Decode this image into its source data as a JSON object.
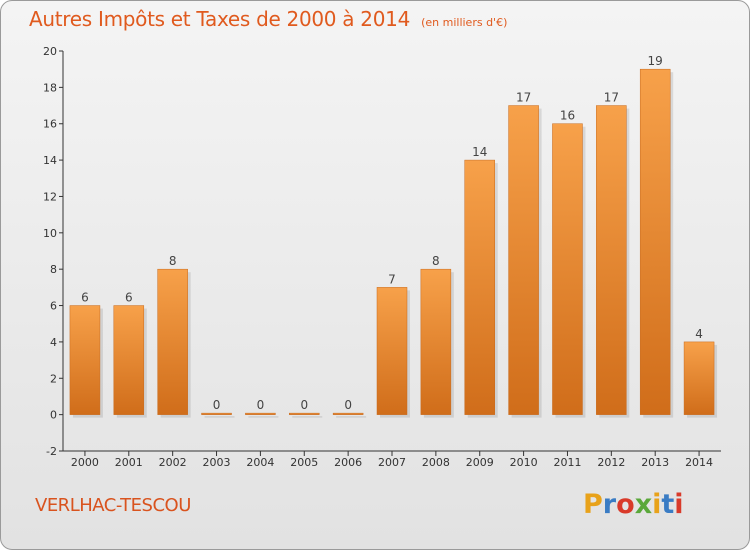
{
  "header": {
    "title": "Autres Impôts et Taxes de 2000 à 2014",
    "subtitle": "(en milliers d'€)"
  },
  "footer": {
    "commune": "VERLHAC-TESCOU",
    "brand": "Proxiti",
    "brand_colors": [
      "#e8a21a",
      "#3a7cc4",
      "#d93a2a",
      "#5aa83a",
      "#e8a21a",
      "#3a7cc4",
      "#d93a2a"
    ]
  },
  "colors": {
    "bar_light": "#f7a14a",
    "bar_dark": "#d06d1a",
    "title": "#e05a1e"
  },
  "chart_data": {
    "type": "bar",
    "categories": [
      "2000",
      "2001",
      "2002",
      "2003",
      "2004",
      "2005",
      "2006",
      "2007",
      "2008",
      "2009",
      "2010",
      "2011",
      "2012",
      "2013",
      "2014"
    ],
    "values": [
      6,
      6,
      8,
      0,
      0,
      0,
      0,
      7,
      8,
      14,
      17,
      16,
      17,
      19,
      4
    ],
    "ylim": [
      -2,
      20
    ],
    "yticks": [
      -2,
      0,
      2,
      4,
      6,
      8,
      10,
      12,
      14,
      16,
      18,
      20
    ],
    "grid": false
  }
}
